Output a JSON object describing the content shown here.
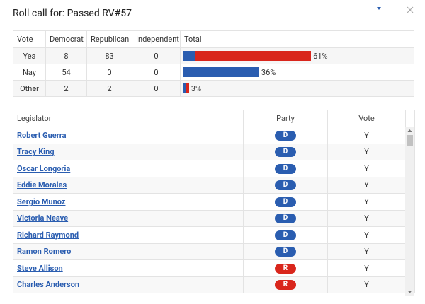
{
  "header": {
    "title": "Roll call for: Passed RV#57"
  },
  "summary": {
    "columns": [
      "Vote",
      "Democrat",
      "Republican",
      "Independent",
      "Total"
    ],
    "rows": [
      {
        "vote": "Yea",
        "democrat": 8,
        "republican": 83,
        "independent": 0,
        "total": "61%"
      },
      {
        "vote": "Nay",
        "democrat": 54,
        "republican": 0,
        "independent": 0,
        "total": "36%"
      },
      {
        "vote": "Other",
        "democrat": 2,
        "republican": 2,
        "independent": 0,
        "total": "3%"
      }
    ]
  },
  "legislators": {
    "columns": [
      "Legislator",
      "Party",
      "Vote"
    ],
    "rows": [
      {
        "name": "Robert Guerra",
        "party": "D",
        "vote": "Y"
      },
      {
        "name": "Tracy King",
        "party": "D",
        "vote": "Y"
      },
      {
        "name": "Oscar Longoria",
        "party": "D",
        "vote": "Y"
      },
      {
        "name": "Eddie Morales",
        "party": "D",
        "vote": "Y"
      },
      {
        "name": "Sergio Munoz",
        "party": "D",
        "vote": "Y"
      },
      {
        "name": "Victoria Neave",
        "party": "D",
        "vote": "Y"
      },
      {
        "name": "Richard Raymond",
        "party": "D",
        "vote": "Y"
      },
      {
        "name": "Ramon Romero",
        "party": "D",
        "vote": "Y"
      },
      {
        "name": "Steve Allison",
        "party": "R",
        "vote": "Y"
      },
      {
        "name": "Charles Anderson",
        "party": "R",
        "vote": "Y"
      }
    ]
  }
}
